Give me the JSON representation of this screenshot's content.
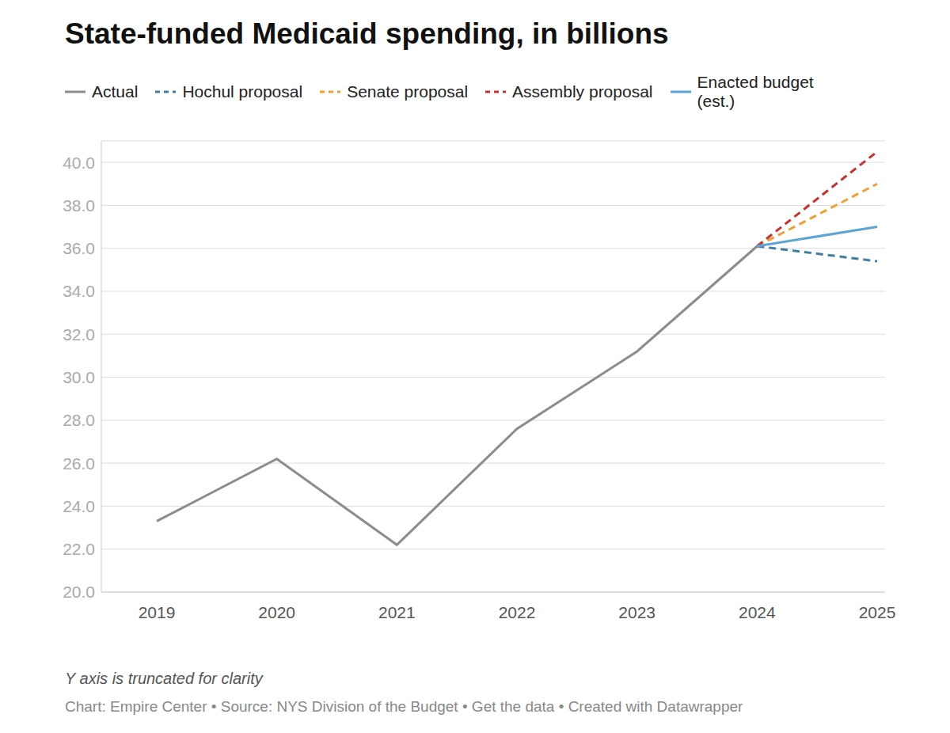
{
  "chart_data": {
    "type": "line",
    "title": "State-funded Medicaid spending, in billions",
    "note": "Y axis is truncated for clarity",
    "source": "Chart: Empire Center • Source: NYS Division of the Budget • Get the data • Created with Datawrapper",
    "categories": [
      "2019",
      "2020",
      "2021",
      "2022",
      "2023",
      "2024",
      "2025"
    ],
    "series": [
      {
        "name": "Actual",
        "color": "#8c8c8c",
        "line_style": "solid",
        "values": [
          23.3,
          26.2,
          22.2,
          27.6,
          31.2,
          36.1,
          null
        ]
      },
      {
        "name": "Hochul proposal",
        "color": "#3d7ea6",
        "line_style": "dashed",
        "values": [
          null,
          null,
          null,
          null,
          null,
          36.1,
          35.4
        ]
      },
      {
        "name": "Senate proposal",
        "color": "#f0a030",
        "line_style": "dashed",
        "values": [
          null,
          null,
          null,
          null,
          null,
          36.1,
          39.0
        ]
      },
      {
        "name": "Assembly proposal",
        "color": "#c9302c",
        "line_style": "dashed",
        "values": [
          null,
          null,
          null,
          null,
          null,
          36.1,
          40.5
        ]
      },
      {
        "name": "Enacted budget (est.)",
        "color": "#5aa5d6",
        "line_style": "solid",
        "values": [
          null,
          null,
          null,
          null,
          null,
          36.1,
          37.0
        ]
      }
    ],
    "ylim": [
      20,
      41
    ],
    "yticks": [
      {
        "value": 20,
        "label": "20.0"
      },
      {
        "value": 22,
        "label": "22.0"
      },
      {
        "value": 24,
        "label": "24.0"
      },
      {
        "value": 26,
        "label": "26.0"
      },
      {
        "value": 28,
        "label": "28.0"
      },
      {
        "value": 30,
        "label": "30.0"
      },
      {
        "value": 32,
        "label": "32.0"
      },
      {
        "value": 34,
        "label": "34.0"
      },
      {
        "value": 36,
        "label": "36.0"
      },
      {
        "value": 38,
        "label": "38.0"
      },
      {
        "value": 40,
        "label": "40.0"
      }
    ],
    "grid": true,
    "legend": "top"
  }
}
